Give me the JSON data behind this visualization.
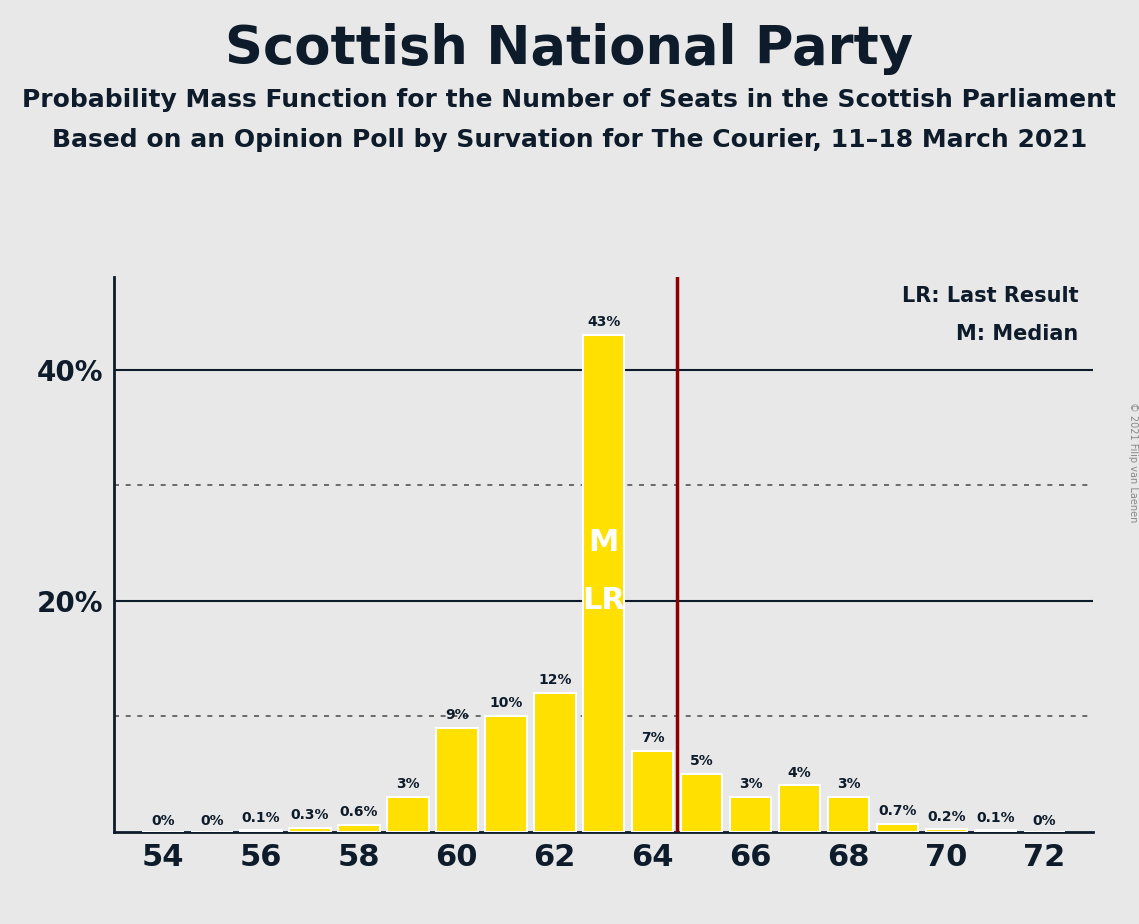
{
  "title": "Scottish National Party",
  "subtitle1": "Probability Mass Function for the Number of Seats in the Scottish Parliament",
  "subtitle2": "Based on an Opinion Poll by Survation for The Courier, 11–18 March 2021",
  "copyright": "© 2021 Filip van Laenen",
  "seats": [
    54,
    55,
    56,
    57,
    58,
    59,
    60,
    61,
    62,
    63,
    64,
    65,
    66,
    67,
    68,
    69,
    70,
    71,
    72
  ],
  "probabilities": [
    0.0,
    0.0,
    0.1,
    0.3,
    0.6,
    3.0,
    9.0,
    10.0,
    12.0,
    43.0,
    7.0,
    5.0,
    3.0,
    4.0,
    3.0,
    0.7,
    0.2,
    0.1,
    0.0
  ],
  "labels": [
    "0%",
    "0%",
    "0.1%",
    "0.3%",
    "0.6%",
    "3%",
    "9%",
    "10%",
    "12%",
    "43%",
    "7%",
    "5%",
    "3%",
    "4%",
    "3%",
    "0.7%",
    "0.2%",
    "0.1%",
    "0%"
  ],
  "bar_color": "#FFE000",
  "bar_edge_color": "#FFFFFF",
  "median_seat": 63,
  "last_result_seat": 64.5,
  "median_label": "M",
  "last_result_label": "LR",
  "median_text_color": "#FFFFFF",
  "last_result_line_color": "#8B0000",
  "background_color": "#E8E8E8",
  "axis_line_color": "#0d1b2a",
  "grid_solid_color": "#0d1b2a",
  "grid_dot_color": "#555555",
  "title_fontsize": 38,
  "subtitle_fontsize": 18,
  "yticks": [
    10,
    20,
    30,
    40
  ],
  "dotted_yticks": [
    10,
    30
  ],
  "xlim": [
    53,
    73
  ],
  "ylim": [
    0,
    48
  ],
  "xticks": [
    54,
    56,
    58,
    60,
    62,
    64,
    66,
    68,
    70,
    72
  ]
}
